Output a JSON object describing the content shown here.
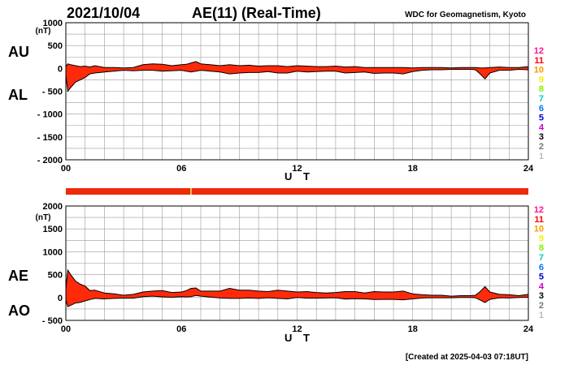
{
  "header": {
    "date": "2021/10/04",
    "title": "AE(11) (Real-Time)",
    "organization": "WDC for Geomagnetism, Kyoto"
  },
  "footer": {
    "created": "[Created at 2025-04-03 07:18UT]"
  },
  "colors": {
    "fill": "#ff2a0a",
    "outline": "#000000",
    "grid": "#9a9a9a",
    "status_bar": "#ee2a0a",
    "status_mark": "#e8c84a"
  },
  "station_levels": [
    {
      "label": "12",
      "color": "#ff1493"
    },
    {
      "label": "11",
      "color": "#ff0000"
    },
    {
      "label": "10",
      "color": "#ff9900"
    },
    {
      "label": "9",
      "color": "#f2f200"
    },
    {
      "label": "8",
      "color": "#88ee00"
    },
    {
      "label": "7",
      "color": "#00cccc"
    },
    {
      "label": "6",
      "color": "#0077ff"
    },
    {
      "label": "5",
      "color": "#0000cc"
    },
    {
      "label": "4",
      "color": "#cc00cc"
    },
    {
      "label": "3",
      "color": "#000000"
    },
    {
      "label": "2",
      "color": "#777777"
    },
    {
      "label": "1",
      "color": "#bbbbbb"
    }
  ],
  "chart_data": [
    {
      "type": "area",
      "title": "AU / AL",
      "upper_label": "AU",
      "lower_label": "AL",
      "unit": "(nT)",
      "xlabel": "U T",
      "xlim": [
        0,
        24
      ],
      "ylim": [
        -2000,
        1000
      ],
      "yticks": [
        1000,
        500,
        0,
        -500,
        -1000,
        -1500,
        -2000
      ],
      "ytick_labels": [
        "1000",
        "500",
        "0",
        "- 500",
        "- 1000",
        "- 1500",
        "- 2000"
      ],
      "xticks": [
        0,
        6,
        12,
        18,
        24
      ],
      "xtick_labels": [
        "00",
        "06",
        "12",
        "18",
        "24"
      ],
      "grid": true,
      "x": [
        0,
        0.1,
        0.25,
        0.5,
        0.75,
        1,
        1.25,
        1.5,
        2,
        2.5,
        3,
        3.5,
        4,
        4.5,
        5,
        5.5,
        6,
        6.25,
        6.5,
        6.75,
        7,
        7.5,
        8,
        8.5,
        9,
        9.5,
        10,
        10.5,
        11,
        11.5,
        12,
        12.5,
        13,
        13.5,
        14,
        14.5,
        15,
        15.5,
        16,
        16.5,
        17,
        17.5,
        18,
        18.5,
        19,
        19.5,
        20,
        20.5,
        21,
        21.25,
        21.5,
        21.75,
        22,
        22.5,
        23,
        23.5,
        24
      ],
      "series": [
        {
          "name": "AU",
          "values": [
            40,
            100,
            80,
            60,
            40,
            50,
            30,
            60,
            20,
            20,
            10,
            20,
            80,
            100,
            90,
            60,
            80,
            90,
            120,
            150,
            100,
            80,
            60,
            80,
            60,
            70,
            50,
            60,
            60,
            40,
            60,
            50,
            40,
            40,
            50,
            30,
            40,
            20,
            20,
            20,
            20,
            20,
            10,
            20,
            20,
            20,
            10,
            20,
            20,
            20,
            10,
            10,
            20,
            30,
            20,
            20,
            40
          ]
        },
        {
          "name": "AL",
          "values": [
            -150,
            -500,
            -420,
            -300,
            -250,
            -200,
            -120,
            -100,
            -80,
            -60,
            -40,
            -50,
            -40,
            -40,
            -60,
            -50,
            -40,
            -60,
            -80,
            -60,
            -40,
            -60,
            -80,
            -120,
            -100,
            -90,
            -90,
            -70,
            -100,
            -100,
            -60,
            -80,
            -70,
            -60,
            -60,
            -100,
            -90,
            -80,
            -110,
            -100,
            -100,
            -120,
            -70,
            -40,
            -30,
            -30,
            -20,
            -20,
            -20,
            -30,
            -120,
            -230,
            -100,
            -40,
            -40,
            -20,
            -30
          ]
        }
      ]
    },
    {
      "type": "area",
      "title": "AE / AO",
      "upper_label": "AE",
      "lower_label": "AO",
      "unit": "(nT)",
      "xlabel": "U T",
      "xlim": [
        0,
        24
      ],
      "ylim": [
        -500,
        2000
      ],
      "yticks": [
        2000,
        1500,
        1000,
        500,
        0,
        -500
      ],
      "ytick_labels": [
        "2000",
        "1500",
        "1000",
        "500",
        "0",
        "- 500"
      ],
      "xticks": [
        0,
        6,
        12,
        18,
        24
      ],
      "xtick_labels": [
        "00",
        "06",
        "12",
        "18",
        "24"
      ],
      "grid": true,
      "x": [
        0,
        0.1,
        0.25,
        0.5,
        0.75,
        1,
        1.25,
        1.5,
        2,
        2.5,
        3,
        3.5,
        4,
        4.5,
        5,
        5.5,
        6,
        6.25,
        6.5,
        6.75,
        7,
        7.5,
        8,
        8.5,
        9,
        9.5,
        10,
        10.5,
        11,
        11.5,
        12,
        12.5,
        13,
        13.5,
        14,
        14.5,
        15,
        15.5,
        16,
        16.5,
        17,
        17.5,
        18,
        18.5,
        19,
        19.5,
        20,
        20.5,
        21,
        21.25,
        21.5,
        21.75,
        22,
        22.5,
        23,
        23.5,
        24
      ],
      "series": [
        {
          "name": "AE",
          "values": [
            190,
            600,
            500,
            360,
            290,
            250,
            150,
            160,
            100,
            80,
            50,
            70,
            120,
            140,
            150,
            110,
            120,
            150,
            200,
            210,
            140,
            140,
            140,
            200,
            160,
            160,
            140,
            130,
            160,
            140,
            120,
            130,
            110,
            100,
            110,
            130,
            130,
            100,
            130,
            120,
            120,
            140,
            80,
            60,
            50,
            50,
            30,
            40,
            40,
            50,
            130,
            240,
            120,
            70,
            60,
            40,
            70
          ]
        },
        {
          "name": "AO",
          "values": [
            -55,
            -200,
            -170,
            -120,
            -105,
            -75,
            -45,
            -20,
            -30,
            -20,
            -15,
            -15,
            20,
            30,
            15,
            5,
            20,
            15,
            20,
            45,
            30,
            10,
            -10,
            -20,
            -20,
            -10,
            -20,
            -5,
            -20,
            -30,
            0,
            -15,
            -15,
            -10,
            -5,
            -35,
            -25,
            -30,
            -45,
            -40,
            -40,
            -50,
            -30,
            -10,
            -5,
            -5,
            -5,
            0,
            0,
            -5,
            -55,
            -110,
            -40,
            -5,
            -10,
            0,
            5
          ]
        }
      ]
    }
  ]
}
